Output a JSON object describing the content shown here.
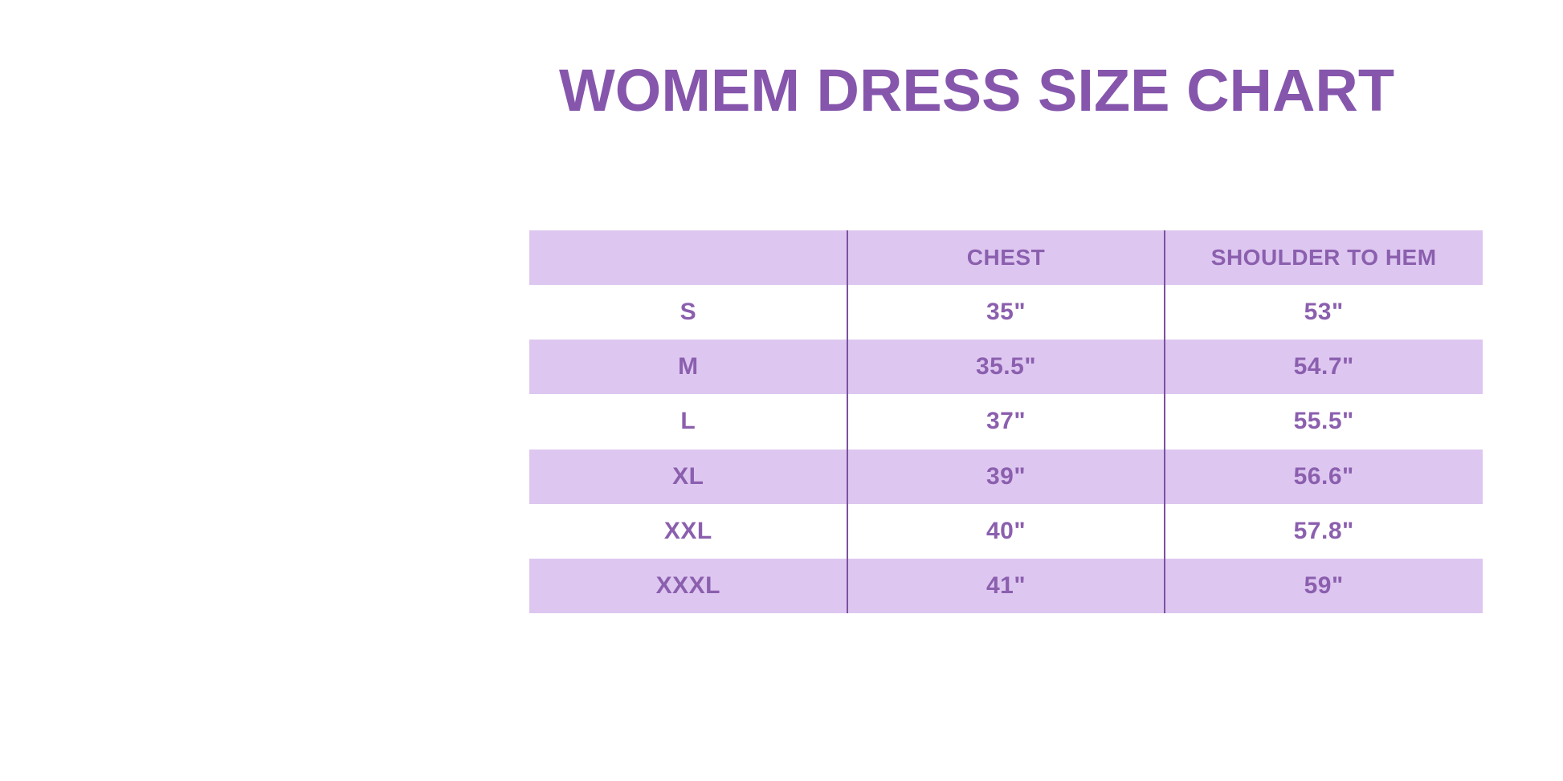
{
  "colors": {
    "background": "#ffffff",
    "accent_purple": "#8656ad",
    "table_text": "#8b5fae",
    "row_fill": "#ddc7f0",
    "row_bg": "#ffffff",
    "divider": "#7b519f"
  },
  "chart_data": {
    "type": "table",
    "title": "WOMEM DRESS SIZE CHART",
    "columns": [
      "",
      "CHEST",
      "SHOULDER TO HEM"
    ],
    "rows": [
      {
        "size": "S",
        "chest": "35\"",
        "shoulder_to_hem": "53\""
      },
      {
        "size": "M",
        "chest": "35.5\"",
        "shoulder_to_hem": "54.7\""
      },
      {
        "size": "L",
        "chest": "37\"",
        "shoulder_to_hem": "55.5\""
      },
      {
        "size": "XL",
        "chest": "39\"",
        "shoulder_to_hem": "56.6\""
      },
      {
        "size": "XXL",
        "chest": "40\"",
        "shoulder_to_hem": "57.8\""
      },
      {
        "size": "XXXL",
        "chest": "41\"",
        "shoulder_to_hem": "59\""
      }
    ]
  }
}
